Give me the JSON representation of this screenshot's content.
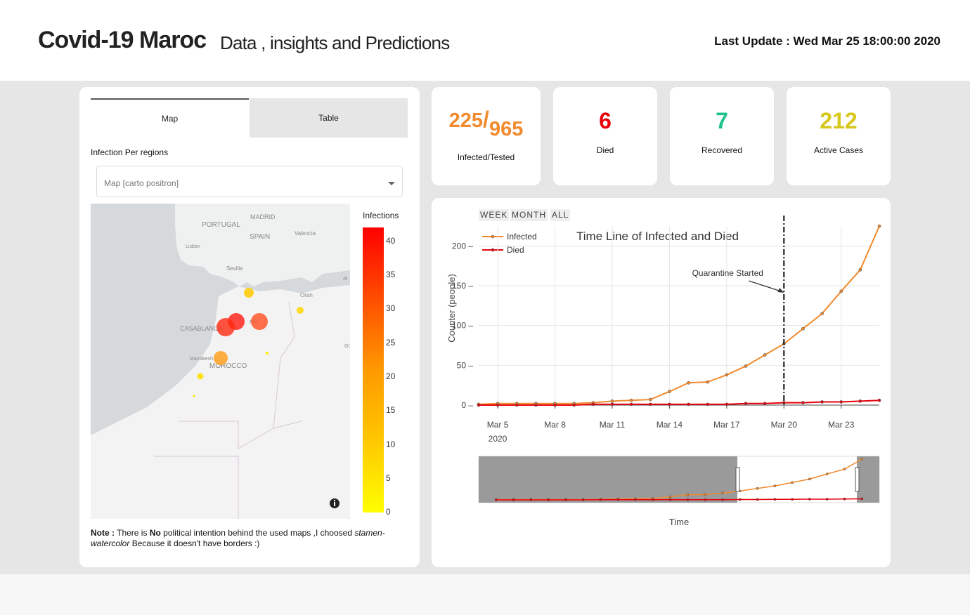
{
  "header": {
    "title": "Covid-19 Maroc",
    "subtitle": "Data , insights and Predictions",
    "last_update": "Last Update : Wed Mar 25 18:00:00 2020"
  },
  "tabs": [
    {
      "label": "Map"
    },
    {
      "label": "Table"
    }
  ],
  "map_panel": {
    "section_label": "Infection Per regions",
    "dropdown_value": "Map [carto positron]",
    "colorbar_title": "Infections",
    "colorbar_ticks": [
      "40",
      "35",
      "30",
      "25",
      "20",
      "15",
      "10",
      "5",
      "0"
    ],
    "place_labels": [
      "MADRID",
      "PORTUGAL",
      "SPAIN",
      "Valencia",
      "Lisbon",
      "Seville",
      "Oran",
      "CASABLANCA",
      "Fes",
      "Marrakesh",
      "MOROCCO",
      "Al",
      "Gl"
    ],
    "colors": {
      "min": "#ffff00",
      "mid": "#ff9a00",
      "max": "#ff0000"
    },
    "info_icon": "info-icon",
    "note": {
      "bold": "Note :",
      "text1": " There is ",
      "bold2": "No",
      "text2": " political intention behind the used maps ,I choosed ",
      "italic": "stamen-watercolor",
      "text3": " Because it doesn't have borders :)"
    }
  },
  "stats": {
    "infected": "225",
    "tested": "965",
    "infected_label": "Infected/Tested",
    "died": "6",
    "died_label": "Died",
    "recovered": "7",
    "recovered_label": "Recovered",
    "active": "212",
    "active_label": "Active Cases",
    "colors": {
      "infected": "#f28a2e",
      "died": "#e8000b",
      "recovered": "#1ec28b",
      "active": "#d6c81c"
    }
  },
  "timeline": {
    "range_buttons": [
      "WEEK",
      "MONTH",
      "ALL"
    ],
    "legend": [
      "Infected",
      "Died"
    ],
    "title": "Time Line of Infected and Died",
    "annotation": "Quarantine Started",
    "xlabel": "Time",
    "ylabel": "Counter (people)",
    "year_label": "2020"
  },
  "chart_data": {
    "type": "line",
    "title": "Time Line of Infected and Died",
    "xlabel": "Time",
    "ylabel": "Counter (people)",
    "x": [
      "Mar 4",
      "Mar 5",
      "Mar 6",
      "Mar 7",
      "Mar 8",
      "Mar 9",
      "Mar 10",
      "Mar 11",
      "Mar 12",
      "Mar 13",
      "Mar 14",
      "Mar 15",
      "Mar 16",
      "Mar 17",
      "Mar 18",
      "Mar 19",
      "Mar 20",
      "Mar 21",
      "Mar 22",
      "Mar 23",
      "Mar 24",
      "Mar 25"
    ],
    "x_ticks": [
      "Mar 5",
      "Mar 8",
      "Mar 11",
      "Mar 14",
      "Mar 17",
      "Mar 20",
      "Mar 23"
    ],
    "y_ticks": [
      0,
      50,
      100,
      150,
      200
    ],
    "ylim": [
      0,
      225
    ],
    "series": [
      {
        "name": "Infected",
        "color": "#f28a2e",
        "values": [
          1,
          2,
          2,
          2,
          2,
          2,
          3,
          5,
          6,
          7,
          17,
          28,
          29,
          38,
          49,
          63,
          77,
          96,
          115,
          143,
          170,
          225
        ]
      },
      {
        "name": "Died",
        "color": "#e8000b",
        "values": [
          0,
          0,
          0,
          0,
          0,
          0,
          1,
          1,
          1,
          1,
          1,
          1,
          1,
          1,
          2,
          2,
          3,
          3,
          4,
          4,
          5,
          6
        ]
      }
    ],
    "annotation": {
      "x": "Mar 20",
      "label": "Quarantine Started"
    },
    "grid": true,
    "legend": "top-left"
  }
}
